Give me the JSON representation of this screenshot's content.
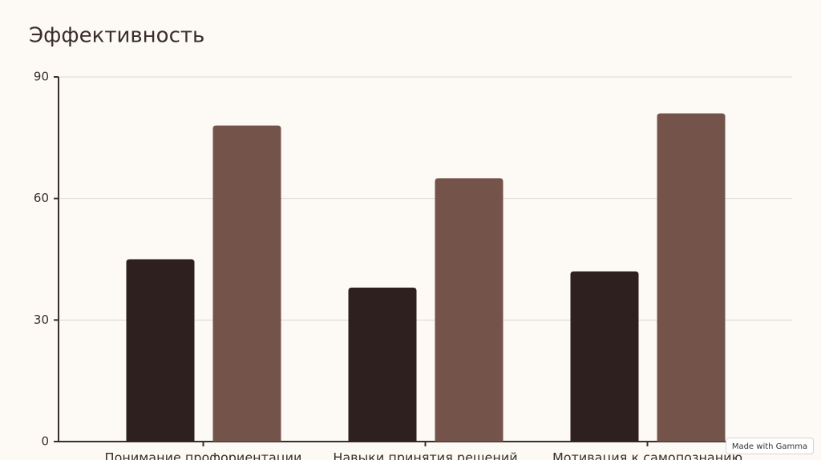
{
  "chart_data": {
    "type": "bar",
    "title": "Эффективность",
    "categories": [
      "Понимание профориентации",
      "Навыки принятия решений",
      "Мотивация к самопознанию"
    ],
    "series": [
      {
        "color": "#2d201e",
        "values": [
          45,
          38,
          42
        ]
      },
      {
        "color": "#74544a",
        "values": [
          78,
          65,
          81
        ]
      }
    ],
    "ylim": [
      0,
      90
    ],
    "yticks": [
      0,
      30,
      60,
      90
    ],
    "grid": true
  },
  "badge": "Made with Gamma"
}
